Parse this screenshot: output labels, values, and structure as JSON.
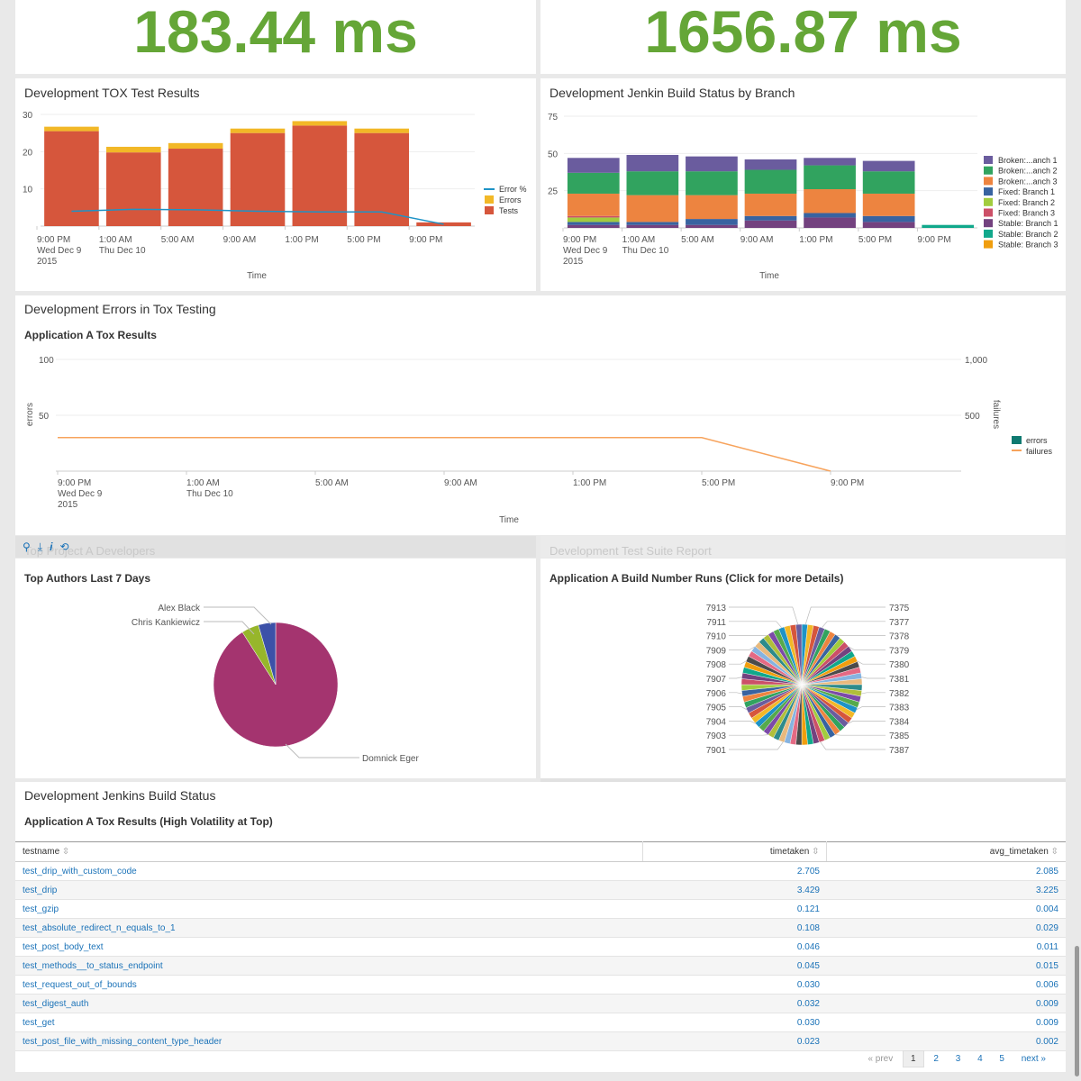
{
  "singles": {
    "left_value": "183.44 ms",
    "right_value": "1656.87 ms",
    "value_color": "#65a637"
  },
  "tox_panel": {
    "title": "Development TOX Test Results",
    "xlabel": "Time"
  },
  "jenkins_panel": {
    "title": "Development Jenkin Build Status by Branch",
    "xlabel": "Time"
  },
  "errors_panel": {
    "title": "Development Errors in Tox Testing",
    "subtitle": "Application A Tox Results",
    "ylabel_left": "errors",
    "ylabel_right": "failures",
    "xlabel": "Time"
  },
  "toolbar_icons": [
    "search-icon",
    "download-icon",
    "info-icon",
    "refresh-icon"
  ],
  "toolbar_glyphs": [
    "⚲",
    "⤓",
    "i",
    "⟲"
  ],
  "developers_panel": {
    "ghost_title": "Top Project A Developers",
    "subtitle": "Top Authors Last 7 Days"
  },
  "suite_panel": {
    "ghost_title": "Development Test Suite Report",
    "subtitle": "Application A Build Number Runs (Click for more Details)"
  },
  "build_status_panel": {
    "title": "Development Jenkins Build Status",
    "subtitle": "Application A Tox Results (High Volatility at Top)",
    "columns": [
      "testname",
      "timetaken",
      "avg_timetaken"
    ],
    "sort_glyph": "⇳",
    "rows": [
      [
        "test_drip_with_custom_code",
        "2.705",
        "2.085"
      ],
      [
        "test_drip",
        "3.429",
        "3.225"
      ],
      [
        "test_gzip",
        "0.121",
        "0.004"
      ],
      [
        "test_absolute_redirect_n_equals_to_1",
        "0.108",
        "0.029"
      ],
      [
        "test_post_body_text",
        "0.046",
        "0.011"
      ],
      [
        "test_methods__to_status_endpoint",
        "0.045",
        "0.015"
      ],
      [
        "test_request_out_of_bounds",
        "0.030",
        "0.006"
      ],
      [
        "test_digest_auth",
        "0.032",
        "0.009"
      ],
      [
        "test_get",
        "0.030",
        "0.009"
      ],
      [
        "test_post_file_with_missing_content_type_header",
        "0.023",
        "0.002"
      ]
    ],
    "pager": [
      "« prev",
      "1",
      "2",
      "3",
      "4",
      "5",
      "next »"
    ]
  },
  "chart_data": [
    {
      "id": "tox",
      "type": "bar",
      "ylim": [
        0,
        30
      ],
      "yticks": [
        "10",
        "20",
        "30"
      ],
      "xtick_labels": [
        [
          "9:00 PM",
          "Wed Dec 9",
          "2015"
        ],
        [
          "1:00 AM",
          "Thu Dec 10"
        ],
        [
          "5:00 AM"
        ],
        [
          "9:00 AM"
        ],
        [
          "1:00 PM"
        ],
        [
          "5:00 PM"
        ],
        [
          "9:00 PM"
        ]
      ],
      "legend": [
        "Error %",
        "Errors",
        "Tests"
      ],
      "colors": {
        "Error %": "#1e93c6",
        "Errors": "#f2b827",
        "Tests": "#d6563c"
      },
      "series": [
        {
          "name": "Tests",
          "values": [
            25.5,
            19.8,
            20.8,
            25,
            27,
            25,
            1
          ]
        },
        {
          "name": "Errors",
          "values": [
            1.2,
            1.5,
            1.5,
            1.2,
            1.2,
            1.2,
            0
          ]
        },
        {
          "name": "Error %",
          "values": [
            4,
            4.5,
            4.4,
            4,
            3.8,
            3.8,
            0.5
          ]
        }
      ]
    },
    {
      "id": "jenkins",
      "type": "bar",
      "ylim": [
        0,
        75
      ],
      "yticks": [
        "25",
        "50",
        "75"
      ],
      "xtick_labels": [
        [
          "9:00 PM",
          "Wed Dec 9",
          "2015"
        ],
        [
          "1:00 AM",
          "Thu Dec 10"
        ],
        [
          "5:00 AM"
        ],
        [
          "9:00 AM"
        ],
        [
          "1:00 PM"
        ],
        [
          "5:00 PM"
        ],
        [
          "9:00 PM"
        ]
      ],
      "legend": [
        "Broken:...anch 1",
        "Broken:...anch 2",
        "Broken:...anch 3",
        "Fixed: Branch 1",
        "Fixed: Branch 2",
        "Fixed: Branch 3",
        "Stable: Branch 1",
        "Stable: Branch 2",
        "Stable: Branch 3"
      ],
      "colors": [
        "#6a5c9e",
        "#31a35f",
        "#ed8440",
        "#3863a0",
        "#a2cc3e",
        "#cc5068",
        "#73427f",
        "#11a88b",
        "#f09e0e"
      ],
      "series": [
        {
          "name": "Stable: Branch 1",
          "values": [
            2,
            2,
            2,
            5,
            7,
            4,
            0
          ]
        },
        {
          "name": "Fixed: Branch 1",
          "values": [
            2,
            2,
            4,
            3,
            3,
            4,
            0
          ]
        },
        {
          "name": "Fixed: Branch 2",
          "values": [
            3,
            0,
            0,
            0,
            0,
            0,
            0
          ]
        },
        {
          "name": "Fixed: Branch 3",
          "values": [
            1,
            0,
            0,
            0,
            0,
            0,
            0
          ]
        },
        {
          "name": "Stable: Branch 2",
          "values": [
            0,
            0,
            0,
            0,
            0,
            0,
            2
          ]
        },
        {
          "name": "Broken:...anch 3",
          "values": [
            15,
            18,
            16,
            15,
            16,
            15,
            0
          ]
        },
        {
          "name": "Broken:...anch 2",
          "values": [
            14,
            16,
            16,
            16,
            16,
            15,
            0
          ]
        },
        {
          "name": "Broken:...anch 1",
          "values": [
            10,
            11,
            10,
            7,
            5,
            7,
            0
          ]
        }
      ]
    },
    {
      "id": "errors",
      "type": "line",
      "ylim_left": [
        0,
        100
      ],
      "ylim_right": [
        0,
        1000
      ],
      "yticks_left": [
        "50",
        "100"
      ],
      "yticks_right": [
        "500",
        "1,000"
      ],
      "xtick_labels": [
        [
          "9:00 PM",
          "Wed Dec 9",
          "2015"
        ],
        [
          "1:00 AM",
          "Thu Dec 10"
        ],
        [
          "5:00 AM"
        ],
        [
          "9:00 AM"
        ],
        [
          "1:00 PM"
        ],
        [
          "5:00 PM"
        ],
        [
          "9:00 PM"
        ]
      ],
      "legend": [
        "errors",
        "failures"
      ],
      "colors": {
        "errors": "#0f7a71",
        "failures": "#f7a35c"
      },
      "series": [
        {
          "name": "failures",
          "values": [
            300,
            300,
            300,
            300,
            300,
            300,
            0
          ]
        }
      ]
    },
    {
      "id": "authors",
      "type": "pie",
      "slices": [
        {
          "label": "Domnick Eger",
          "value": 91,
          "color": "#a4346f"
        },
        {
          "label": "Chris Kankiewicz",
          "value": 4.5,
          "color": "#97b62b"
        },
        {
          "label": "Alex Black",
          "value": 4.5,
          "color": "#3c51a8"
        }
      ]
    },
    {
      "id": "builds",
      "type": "pie",
      "left_labels": [
        "7913",
        "7911",
        "7910",
        "7909",
        "7908",
        "7907",
        "7906",
        "7905",
        "7904",
        "7903",
        "7901"
      ],
      "right_labels": [
        "7375",
        "7377",
        "7378",
        "7379",
        "7380",
        "7381",
        "7382",
        "7383",
        "7384",
        "7385",
        "7387"
      ],
      "slice_count": 64,
      "palette": [
        "#1e93c6",
        "#f2b827",
        "#d6563c",
        "#6a5c9e",
        "#31a35f",
        "#ed8440",
        "#3863a0",
        "#a2cc3e",
        "#cc5068",
        "#73427f",
        "#11a88b",
        "#f09e0e",
        "#4b4b4b",
        "#e46a84",
        "#86b3e0",
        "#e8b97d",
        "#2d8b8b",
        "#b0bf3a",
        "#7c4aa8",
        "#56aa4c"
      ]
    }
  ]
}
